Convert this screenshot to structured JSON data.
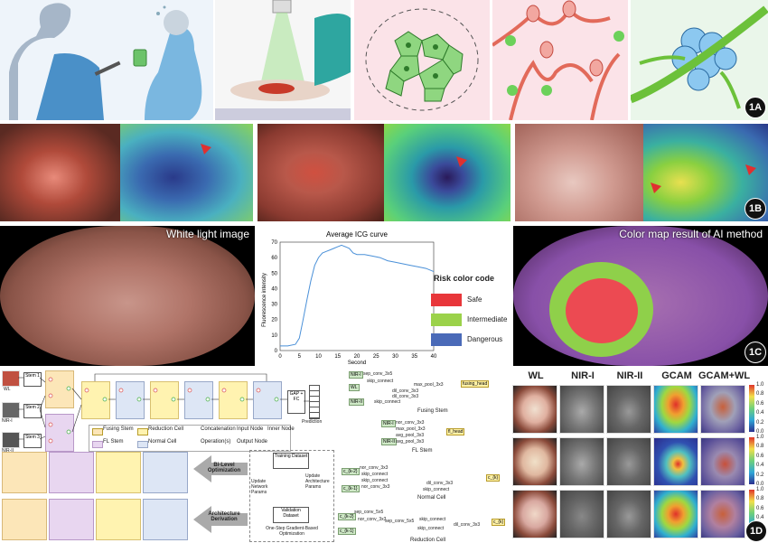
{
  "badges": {
    "a": "1A",
    "b": "1B",
    "c": "1C",
    "d": "1D"
  },
  "panel_c": {
    "left_title": "White light image",
    "right_title": "Color map result of AI method",
    "risk_title": "Risk color code",
    "risk_items": [
      {
        "label": "Safe",
        "color": "#e8363a"
      },
      {
        "label": "Intermediate",
        "color": "#9bd24a"
      },
      {
        "label": "Dangerous",
        "color": "#4a6ab8"
      }
    ]
  },
  "chart_data": {
    "type": "line",
    "title": "Average ICG curve",
    "xlabel": "Second",
    "ylabel": "Fluorescence intensity",
    "xlim": [
      0,
      40
    ],
    "ylim": [
      0,
      70
    ],
    "xticks": [
      0,
      5,
      10,
      15,
      20,
      25,
      30,
      35,
      40
    ],
    "yticks": [
      0,
      10,
      20,
      30,
      40,
      50,
      60,
      70
    ],
    "series": [
      {
        "x": [
          0,
          2,
          4,
          5,
          6,
          7,
          8,
          9,
          10,
          11,
          12,
          13,
          14,
          15,
          16,
          17,
          18,
          19,
          20,
          22,
          24,
          26,
          28,
          30,
          32,
          34,
          36,
          38,
          40
        ],
        "y": [
          3,
          3,
          4,
          8,
          20,
          33,
          45,
          55,
          60,
          63,
          64,
          65,
          66,
          67,
          68,
          67,
          66,
          63,
          62,
          62,
          61,
          60,
          58,
          57,
          56,
          55,
          54,
          53,
          51
        ]
      }
    ]
  },
  "panel_d": {
    "columns": [
      "WL",
      "NIR-I",
      "NIR-II",
      "GCAM",
      "GCAM+WL"
    ],
    "cbar_ticks": [
      "1.0",
      "0.8",
      "0.6",
      "0.4",
      "0.2",
      "0.0"
    ]
  },
  "network": {
    "inputs": [
      "WL",
      "NIR-I",
      "NIR-II"
    ],
    "stems": [
      "Stem 1",
      "Stem 2",
      "Stem 3"
    ],
    "head": "GAP + FC",
    "prediction": "Prediction",
    "legend": [
      {
        "label": "Fusing Stem",
        "color": "#fce6b8"
      },
      {
        "label": "Reduction Cell",
        "color": "#fff3b0"
      },
      {
        "label": "FL Stem",
        "color": "#e8d6f0"
      },
      {
        "label": "Normal Cell",
        "color": "#dde6f5"
      },
      {
        "label": "Concatenation"
      },
      {
        "label": "Operation(s)"
      },
      {
        "label": "Input Node"
      },
      {
        "label": "Inner Node"
      },
      {
        "label": "Output Node"
      }
    ],
    "bilevel": "Bi-Level Optimization",
    "derivation": "Architecture Derivation",
    "training": "Training Dataset",
    "validation": "Validation Dataset",
    "update_net": "Update Network Params",
    "update_arch": "Update Architecture Params",
    "one_step": "One-Step Gradient-Based Optimization"
  },
  "cells": {
    "fusing": {
      "caption": "Fusing Stem",
      "in_nodes": [
        "NIR-I",
        "WL",
        "NIR-II"
      ],
      "out": "fusing_head",
      "ops": [
        "sep_conv_3x5",
        "skip_connect",
        "dil_conv_3x3",
        "max_pool_3x3",
        "dil_conv_3x3",
        "skip_connect"
      ]
    },
    "fl": {
      "caption": "FL Stem",
      "in_nodes": [
        "NIR-I",
        "NIR-II"
      ],
      "out": "fl_head",
      "ops": [
        "nor_conv_3x3",
        "max_pool_3x3",
        "avg_pool_3x3",
        "avg_pool_3x3"
      ]
    },
    "normal": {
      "caption": "Normal Cell",
      "in_nodes": [
        "c_{k-2}",
        "c_{k-1}"
      ],
      "out": "c_{k}",
      "ops": [
        "nor_conv_3x3",
        "skip_connect",
        "skip_connect",
        "nor_conv_3x3",
        "dil_conv_3x3",
        "skip_connect"
      ]
    },
    "reduction": {
      "caption": "Reduction Cell",
      "in_nodes": [
        "c_{k-2}",
        "c_{k-1}"
      ],
      "out": "c_{k}",
      "ops": [
        "sep_conv_5x5",
        "nor_conv_3x3",
        "sep_conv_5x5",
        "skip_connect",
        "skip_connect",
        "dil_conv_3x3"
      ]
    }
  }
}
